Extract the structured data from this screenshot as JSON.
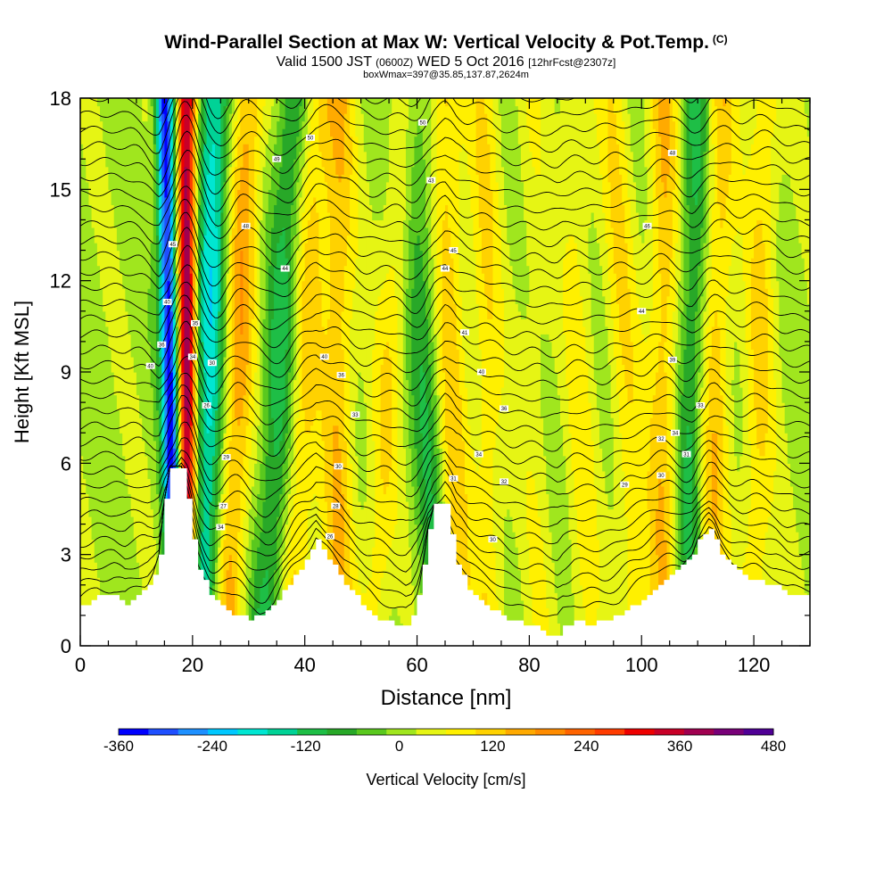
{
  "header": {
    "title": "Wind-Parallel Section at Max W: Vertical Velocity & Pot.Temp.",
    "copyright": "(C)",
    "valid_prefix": "Valid 1500 JST",
    "valid_utc": "(0600Z)",
    "valid_date": "WED 5 Oct 2016",
    "forecast": "[12hrFcst@2307z]",
    "box_info": "boxWmax=397@35.85,137.87,2624m"
  },
  "chart_data": {
    "type": "heatmap",
    "xlabel": "Distance [nm]",
    "ylabel": "Height [Kft MSL]",
    "xlim": [
      0,
      130
    ],
    "ylim": [
      0,
      18
    ],
    "x_ticks": [
      0,
      20,
      40,
      60,
      80,
      100,
      120
    ],
    "y_ticks": [
      0,
      3,
      6,
      9,
      12,
      15,
      18
    ],
    "colorbar": {
      "label": "Vertical Velocity [cm/s]",
      "range": [
        -360,
        480
      ],
      "tick_labels": [
        "-360",
        "-240",
        "-120",
        "0",
        "120",
        "240",
        "360",
        "480"
      ],
      "colors": [
        "#0000ff",
        "#1f4fff",
        "#1e90ff",
        "#00c8ff",
        "#00e6d2",
        "#00d296",
        "#1ebe46",
        "#28a828",
        "#5ac81e",
        "#a0e61e",
        "#e6f514",
        "#fff000",
        "#ffd200",
        "#ffaa00",
        "#ff8c00",
        "#ff6400",
        "#ff3c00",
        "#ee0000",
        "#c80028",
        "#a00050",
        "#780078",
        "#500096"
      ]
    },
    "vertical_velocity_bands": [
      {
        "x_base": 17,
        "x_top": 15,
        "w": -360
      },
      {
        "x_base": 19,
        "x_top": 19,
        "w": 397
      },
      {
        "x_base": 22,
        "x_top": 24,
        "w": -200
      },
      {
        "x_base": 26,
        "x_top": 30,
        "w": 150
      },
      {
        "x_base": 33,
        "x_top": 38,
        "w": -120
      },
      {
        "x_base": 38,
        "x_top": 42,
        "w": 100
      },
      {
        "x_base": 46,
        "x_top": 46,
        "w": 120
      },
      {
        "x_base": 52,
        "x_top": 58,
        "w": 80
      },
      {
        "x_base": 64,
        "x_top": 59,
        "w": -100
      },
      {
        "x_base": 67,
        "x_top": 65,
        "w": 110
      },
      {
        "x_base": 73,
        "x_top": 72,
        "w": 80
      },
      {
        "x_base": 82,
        "x_top": 80,
        "w": 40
      },
      {
        "x_base": 90,
        "x_top": 88,
        "w": 60
      },
      {
        "x_base": 99,
        "x_top": 95,
        "w": 80
      },
      {
        "x_base": 104,
        "x_top": 104,
        "w": 120
      },
      {
        "x_base": 108,
        "x_top": 110,
        "w": -120
      },
      {
        "x_base": 112,
        "x_top": 114,
        "w": 120
      },
      {
        "x_base": 120,
        "x_top": 122,
        "w": 90
      }
    ],
    "terrain": [
      {
        "x": 0,
        "z": 1.3
      },
      {
        "x": 3,
        "z": 1.6
      },
      {
        "x": 6,
        "z": 1.6
      },
      {
        "x": 8,
        "z": 1.4
      },
      {
        "x": 10,
        "z": 1.7
      },
      {
        "x": 12,
        "z": 2.0
      },
      {
        "x": 13,
        "z": 2.4
      },
      {
        "x": 14,
        "z": 3.0
      },
      {
        "x": 15,
        "z": 4.8
      },
      {
        "x": 16,
        "z": 5.9
      },
      {
        "x": 18,
        "z": 5.9
      },
      {
        "x": 19,
        "z": 4.8
      },
      {
        "x": 20,
        "z": 3.5
      },
      {
        "x": 21,
        "z": 2.5
      },
      {
        "x": 23,
        "z": 1.7
      },
      {
        "x": 25,
        "z": 1.3
      },
      {
        "x": 27,
        "z": 1.0
      },
      {
        "x": 30,
        "z": 0.9
      },
      {
        "x": 33,
        "z": 1.1
      },
      {
        "x": 35,
        "z": 1.5
      },
      {
        "x": 37,
        "z": 2.0
      },
      {
        "x": 39,
        "z": 2.5
      },
      {
        "x": 41,
        "z": 3.1
      },
      {
        "x": 42,
        "z": 3.5
      },
      {
        "x": 43,
        "z": 3.2
      },
      {
        "x": 45,
        "z": 2.6
      },
      {
        "x": 47,
        "z": 2.0
      },
      {
        "x": 49,
        "z": 1.6
      },
      {
        "x": 51,
        "z": 1.2
      },
      {
        "x": 53,
        "z": 0.9
      },
      {
        "x": 56,
        "z": 0.7
      },
      {
        "x": 58,
        "z": 0.7
      },
      {
        "x": 59,
        "z": 1.0
      },
      {
        "x": 60,
        "z": 1.6
      },
      {
        "x": 61,
        "z": 2.6
      },
      {
        "x": 62,
        "z": 3.9
      },
      {
        "x": 63,
        "z": 4.6
      },
      {
        "x": 65,
        "z": 4.6
      },
      {
        "x": 66,
        "z": 3.6
      },
      {
        "x": 67,
        "z": 2.6
      },
      {
        "x": 69,
        "z": 1.9
      },
      {
        "x": 71,
        "z": 1.5
      },
      {
        "x": 73,
        "z": 1.2
      },
      {
        "x": 75,
        "z": 1.0
      },
      {
        "x": 77,
        "z": 0.8
      },
      {
        "x": 79,
        "z": 0.7
      },
      {
        "x": 81,
        "z": 0.6
      },
      {
        "x": 83,
        "z": 0.4
      },
      {
        "x": 85,
        "z": 0.3
      },
      {
        "x": 86,
        "z": 0.6
      },
      {
        "x": 88,
        "z": 0.8
      },
      {
        "x": 90,
        "z": 0.7
      },
      {
        "x": 93,
        "z": 0.8
      },
      {
        "x": 96,
        "z": 1.0
      },
      {
        "x": 99,
        "z": 1.4
      },
      {
        "x": 101,
        "z": 1.7
      },
      {
        "x": 103,
        "z": 2.0
      },
      {
        "x": 105,
        "z": 2.3
      },
      {
        "x": 107,
        "z": 2.6
      },
      {
        "x": 109,
        "z": 3.0
      },
      {
        "x": 110,
        "z": 3.5
      },
      {
        "x": 112,
        "z": 3.8
      },
      {
        "x": 113,
        "z": 3.5
      },
      {
        "x": 114,
        "z": 3.0
      },
      {
        "x": 116,
        "z": 2.6
      },
      {
        "x": 118,
        "z": 2.3
      },
      {
        "x": 121,
        "z": 2.1
      },
      {
        "x": 124,
        "z": 2.0
      },
      {
        "x": 126,
        "z": 1.7
      },
      {
        "x": 128,
        "z": 1.6
      },
      {
        "x": 130,
        "z": 1.6
      }
    ],
    "isentrope_labels": [
      {
        "x": 12.5,
        "z": 9.2,
        "text": "40"
      },
      {
        "x": 14.5,
        "z": 9.9,
        "text": "36"
      },
      {
        "x": 15.5,
        "z": 11.3,
        "text": "40"
      },
      {
        "x": 16.5,
        "z": 13.2,
        "text": "45"
      },
      {
        "x": 20.0,
        "z": 9.5,
        "text": "34"
      },
      {
        "x": 20.5,
        "z": 10.6,
        "text": "35"
      },
      {
        "x": 23.5,
        "z": 9.3,
        "text": "30"
      },
      {
        "x": 22.5,
        "z": 7.9,
        "text": "26"
      },
      {
        "x": 26.0,
        "z": 6.2,
        "text": "29"
      },
      {
        "x": 25.5,
        "z": 4.6,
        "text": "27"
      },
      {
        "x": 25.0,
        "z": 3.9,
        "text": "34"
      },
      {
        "x": 29.5,
        "z": 13.8,
        "text": "48"
      },
      {
        "x": 35.0,
        "z": 16.0,
        "text": "49"
      },
      {
        "x": 36.5,
        "z": 12.4,
        "text": "44"
      },
      {
        "x": 41.0,
        "z": 16.7,
        "text": "50"
      },
      {
        "x": 43.5,
        "z": 9.5,
        "text": "40"
      },
      {
        "x": 46.5,
        "z": 8.9,
        "text": "36"
      },
      {
        "x": 49.0,
        "z": 7.6,
        "text": "33"
      },
      {
        "x": 46.0,
        "z": 5.9,
        "text": "30"
      },
      {
        "x": 45.5,
        "z": 4.6,
        "text": "28"
      },
      {
        "x": 44.5,
        "z": 3.6,
        "text": "26"
      },
      {
        "x": 61.0,
        "z": 17.2,
        "text": "50"
      },
      {
        "x": 62.5,
        "z": 15.3,
        "text": "43"
      },
      {
        "x": 65.0,
        "z": 12.4,
        "text": "44"
      },
      {
        "x": 66.5,
        "z": 13.0,
        "text": "45"
      },
      {
        "x": 68.5,
        "z": 10.3,
        "text": "41"
      },
      {
        "x": 71.5,
        "z": 9.0,
        "text": "40"
      },
      {
        "x": 75.5,
        "z": 7.8,
        "text": "36"
      },
      {
        "x": 71.0,
        "z": 6.3,
        "text": "34"
      },
      {
        "x": 66.5,
        "z": 5.5,
        "text": "31"
      },
      {
        "x": 75.5,
        "z": 5.4,
        "text": "32"
      },
      {
        "x": 73.5,
        "z": 3.5,
        "text": "30"
      },
      {
        "x": 105.5,
        "z": 16.2,
        "text": "48"
      },
      {
        "x": 101.0,
        "z": 13.8,
        "text": "46"
      },
      {
        "x": 100.0,
        "z": 11.0,
        "text": "44"
      },
      {
        "x": 105.5,
        "z": 9.4,
        "text": "39"
      },
      {
        "x": 110.5,
        "z": 7.9,
        "text": "33"
      },
      {
        "x": 103.5,
        "z": 6.8,
        "text": "32"
      },
      {
        "x": 106.0,
        "z": 7.0,
        "text": "34"
      },
      {
        "x": 108.0,
        "z": 6.3,
        "text": "31"
      },
      {
        "x": 97.0,
        "z": 5.3,
        "text": "29"
      },
      {
        "x": 103.5,
        "z": 5.6,
        "text": "30"
      }
    ]
  }
}
